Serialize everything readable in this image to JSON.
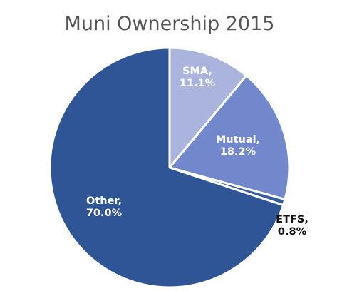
{
  "chart_data": {
    "type": "pie",
    "title": "Muni Ownership 2015",
    "slices": [
      {
        "name": "SMA",
        "value": 11.1,
        "label_lines": [
          "SMA,",
          "11.1%"
        ],
        "color": "#aab4dc",
        "label_color": "#ffffff"
      },
      {
        "name": "Mutual",
        "value": 18.2,
        "label_lines": [
          "Mutual,",
          "18.2%"
        ],
        "color": "#7388cc",
        "label_color": "#ffffff"
      },
      {
        "name": "ETFS",
        "value": 0.8,
        "label_lines": [
          "ETFS,",
          "0.8%"
        ],
        "color": "#3a5a9e",
        "label_color": "#111111"
      },
      {
        "name": "Other",
        "value": 70.0,
        "label_lines": [
          "Other,",
          "70.0%"
        ],
        "color": "#2f5597",
        "label_color": "#ffffff"
      }
    ],
    "start_angle_deg": 0,
    "direction": "clockwise",
    "legend": "none"
  }
}
